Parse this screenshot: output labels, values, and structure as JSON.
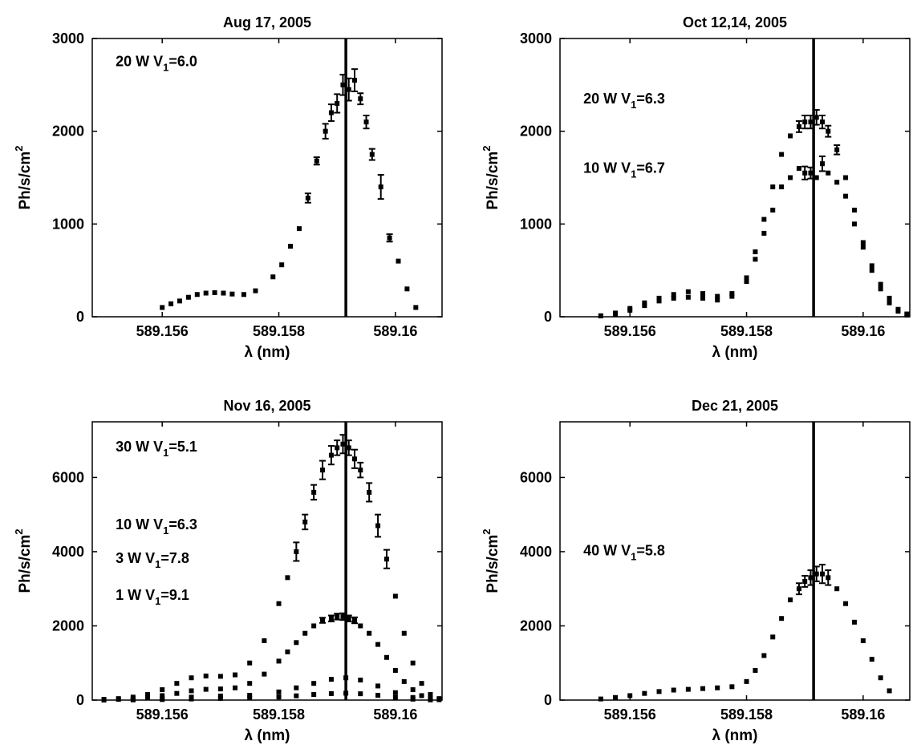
{
  "chart_data": [
    {
      "type": "scatter",
      "title": "Aug 17, 2005",
      "xlabel": "λ (nm)",
      "ylabel": "Ph/s/cm",
      "ylabel_sup": "2",
      "xlim": [
        589.1548,
        589.1608
      ],
      "ylim": [
        0,
        3000
      ],
      "xticks": [
        589.156,
        589.158,
        589.16
      ],
      "xtick_labels": [
        "589.156",
        "589.158",
        "589.16"
      ],
      "yticks": [
        0,
        1000,
        2000,
        3000
      ],
      "ytick_labels": [
        "0",
        "1000",
        "2000",
        "3000"
      ],
      "vline": 589.15915,
      "annotations": [
        {
          "pre": "20 W  V",
          "sub": "1",
          "post": "=6.0",
          "x": 589.1552,
          "y": 2700
        }
      ],
      "series": [
        {
          "x": [
            589.156,
            589.15615,
            589.1563,
            589.15645,
            589.1566,
            589.15675,
            589.1569,
            589.15705,
            589.1572,
            589.1574,
            589.1576,
            589.1579,
            589.15805,
            589.1582,
            589.15835,
            589.1585,
            589.15865,
            589.1588,
            589.1589,
            589.159,
            589.1591,
            589.1592,
            589.1593,
            589.1594,
            589.1595,
            589.1596,
            589.15975,
            589.1599,
            589.16005,
            589.1602,
            589.16035
          ],
          "y": [
            100,
            140,
            170,
            210,
            240,
            255,
            260,
            255,
            245,
            240,
            280,
            430,
            560,
            760,
            950,
            1280,
            1680,
            2000,
            2200,
            2300,
            2500,
            2450,
            2550,
            2350,
            2100,
            1750,
            1400,
            850,
            600,
            300,
            100
          ],
          "err": [
            0,
            0,
            0,
            0,
            0,
            0,
            0,
            0,
            0,
            0,
            0,
            0,
            0,
            0,
            0,
            50,
            40,
            80,
            90,
            100,
            110,
            120,
            120,
            60,
            70,
            60,
            130,
            40,
            0,
            0,
            0
          ]
        }
      ]
    },
    {
      "type": "scatter",
      "title": "Oct 12,14, 2005",
      "xlabel": "λ (nm)",
      "ylabel": "Ph/s/cm",
      "ylabel_sup": "2",
      "xlim": [
        589.1548,
        589.1608
      ],
      "ylim": [
        0,
        3000
      ],
      "xticks": [
        589.156,
        589.158,
        589.16
      ],
      "xtick_labels": [
        "589.156",
        "589.158",
        "589.16"
      ],
      "yticks": [
        0,
        1000,
        2000,
        3000
      ],
      "ytick_labels": [
        "0",
        "1000",
        "2000",
        "3000"
      ],
      "vline": 589.15915,
      "annotations": [
        {
          "pre": "20 W  V",
          "sub": "1",
          "post": "=6.3",
          "x": 589.1552,
          "y": 2300
        },
        {
          "pre": "10 W  V",
          "sub": "1",
          "post": "=6.7",
          "x": 589.1552,
          "y": 1550
        }
      ],
      "series": [
        {
          "x": [
            589.1555,
            589.15575,
            589.156,
            589.15625,
            589.1565,
            589.15675,
            589.157,
            589.15725,
            589.1575,
            589.15775,
            589.158,
            589.15815,
            589.1583,
            589.15845,
            589.1586,
            589.15875,
            589.1589,
            589.159,
            589.1591,
            589.1592,
            589.1593,
            589.1594,
            589.15955,
            589.1597,
            589.15985,
            589.16,
            589.16015,
            589.1603,
            589.16045,
            589.1606,
            589.16075
          ],
          "y": [
            10,
            40,
            90,
            150,
            200,
            240,
            270,
            250,
            220,
            250,
            420,
            700,
            1050,
            1400,
            1750,
            1950,
            2050,
            2100,
            2100,
            2150,
            2100,
            2000,
            1800,
            1500,
            1150,
            800,
            550,
            350,
            200,
            80,
            30
          ],
          "err": [
            0,
            0,
            0,
            0,
            0,
            0,
            0,
            0,
            0,
            0,
            0,
            0,
            0,
            0,
            0,
            0,
            60,
            70,
            70,
            80,
            70,
            60,
            50,
            0,
            0,
            0,
            0,
            0,
            0,
            0,
            0
          ]
        },
        {
          "x": [
            589.1555,
            589.15575,
            589.156,
            589.15625,
            589.1565,
            589.15675,
            589.157,
            589.15725,
            589.1575,
            589.15775,
            589.158,
            589.15815,
            589.1583,
            589.15845,
            589.1586,
            589.15875,
            589.1589,
            589.159,
            589.1591,
            589.1592,
            589.1593,
            589.1594,
            589.15955,
            589.1597,
            589.15985,
            589.16,
            589.16015,
            589.1603,
            589.16045,
            589.1606,
            589.16075
          ],
          "y": [
            10,
            30,
            70,
            120,
            170,
            200,
            210,
            200,
            180,
            220,
            380,
            620,
            900,
            1150,
            1400,
            1500,
            1600,
            1550,
            1550,
            1500,
            1650,
            1550,
            1450,
            1300,
            1000,
            750,
            500,
            300,
            150,
            60,
            20
          ],
          "err": [
            0,
            0,
            0,
            0,
            0,
            0,
            0,
            0,
            0,
            0,
            0,
            0,
            0,
            0,
            0,
            0,
            0,
            70,
            60,
            0,
            80,
            0,
            0,
            0,
            0,
            0,
            0,
            0,
            0,
            0,
            0
          ]
        }
      ]
    },
    {
      "type": "scatter",
      "title": "Nov 16, 2005",
      "xlabel": "λ (nm)",
      "ylabel": "Ph/s/cm",
      "ylabel_sup": "2",
      "xlim": [
        589.1548,
        589.1608
      ],
      "ylim": [
        0,
        7500
      ],
      "xticks": [
        589.156,
        589.158,
        589.16
      ],
      "xtick_labels": [
        "589.156",
        "589.158",
        "589.16"
      ],
      "yticks": [
        0,
        2000,
        4000,
        6000
      ],
      "ytick_labels": [
        "0",
        "2000",
        "4000",
        "6000"
      ],
      "vline": 589.15915,
      "annotations": [
        {
          "pre": "30 W  V",
          "sub": "1",
          "post": "=5.1",
          "x": 589.1552,
          "y": 6700
        },
        {
          "pre": "10 W  V",
          "sub": "1",
          "post": "=6.3",
          "x": 589.1552,
          "y": 4600
        },
        {
          "pre": "3 W  V",
          "sub": "1",
          "post": "=7.8",
          "x": 589.1552,
          "y": 3700
        },
        {
          "pre": "1 W  V",
          "sub": "1",
          "post": "=9.1",
          "x": 589.1552,
          "y": 2700
        }
      ],
      "series": [
        {
          "x": [
            589.155,
            589.15525,
            589.1555,
            589.15575,
            589.156,
            589.15625,
            589.1565,
            589.15675,
            589.157,
            589.15725,
            589.1575,
            589.15775,
            589.158,
            589.15815,
            589.1583,
            589.15845,
            589.1586,
            589.15875,
            589.1589,
            589.159,
            589.1591,
            589.1592,
            589.1593,
            589.1594,
            589.15955,
            589.1597,
            589.15985,
            589.16,
            589.16015,
            589.1603,
            589.16045,
            589.1606,
            589.16075
          ],
          "y": [
            20,
            40,
            80,
            150,
            280,
            450,
            600,
            650,
            640,
            680,
            1000,
            1600,
            2600,
            3300,
            4000,
            4800,
            5600,
            6200,
            6600,
            6800,
            6900,
            6800,
            6500,
            6200,
            5600,
            4700,
            3800,
            2800,
            1800,
            1000,
            450,
            150,
            40
          ],
          "err": [
            0,
            0,
            0,
            0,
            0,
            0,
            0,
            0,
            0,
            0,
            0,
            0,
            0,
            0,
            250,
            200,
            200,
            250,
            250,
            200,
            250,
            200,
            250,
            200,
            250,
            300,
            250,
            0,
            0,
            0,
            0,
            0,
            0
          ]
        },
        {
          "x": [
            589.155,
            589.15525,
            589.1555,
            589.15575,
            589.156,
            589.15625,
            589.1565,
            589.15675,
            589.157,
            589.15725,
            589.1575,
            589.15775,
            589.158,
            589.15815,
            589.1583,
            589.15845,
            589.1586,
            589.15875,
            589.1589,
            589.159,
            589.1591,
            589.1592,
            589.1593,
            589.1594,
            589.15955,
            589.1597,
            589.15985,
            589.16,
            589.16015,
            589.1603,
            589.16045,
            589.1606,
            589.16075
          ],
          "y": [
            10,
            20,
            40,
            70,
            120,
            180,
            250,
            290,
            300,
            330,
            450,
            700,
            1050,
            1300,
            1550,
            1800,
            2000,
            2150,
            2200,
            2250,
            2250,
            2200,
            2150,
            2000,
            1800,
            1500,
            1150,
            800,
            500,
            280,
            120,
            40,
            10
          ],
          "err": [
            0,
            0,
            0,
            0,
            0,
            0,
            0,
            0,
            0,
            0,
            0,
            0,
            0,
            0,
            0,
            0,
            0,
            70,
            80,
            80,
            90,
            80,
            80,
            0,
            0,
            0,
            0,
            0,
            0,
            0,
            0,
            0,
            0
          ]
        },
        {
          "x": [
            589.155,
            589.1555,
            589.156,
            589.1565,
            589.157,
            589.1575,
            589.158,
            589.1583,
            589.1586,
            589.1589,
            589.15915,
            589.1594,
            589.1597,
            589.16,
            589.1603,
            589.1606
          ],
          "y": [
            5,
            15,
            40,
            80,
            110,
            130,
            220,
            330,
            450,
            560,
            600,
            540,
            380,
            200,
            70,
            15
          ],
          "err": [
            0,
            0,
            0,
            0,
            0,
            0,
            0,
            0,
            0,
            0,
            0,
            0,
            0,
            0,
            0,
            0
          ]
        },
        {
          "x": [
            589.155,
            589.1555,
            589.156,
            589.1565,
            589.157,
            589.1575,
            589.158,
            589.1583,
            589.1586,
            589.1589,
            589.15915,
            589.1594,
            589.1597,
            589.16,
            589.1603,
            589.1606
          ],
          "y": [
            2,
            6,
            15,
            30,
            45,
            55,
            85,
            115,
            150,
            175,
            185,
            170,
            130,
            70,
            25,
            6
          ],
          "err": [
            0,
            0,
            0,
            0,
            0,
            0,
            0,
            0,
            0,
            0,
            0,
            0,
            0,
            0,
            0,
            0
          ]
        }
      ]
    },
    {
      "type": "scatter",
      "title": "Dec 21, 2005",
      "xlabel": "λ (nm)",
      "ylabel": "Ph/s/cm",
      "ylabel_sup": "2",
      "xlim": [
        589.1548,
        589.1608
      ],
      "ylim": [
        0,
        7500
      ],
      "xticks": [
        589.156,
        589.158,
        589.16
      ],
      "xtick_labels": [
        "589.156",
        "589.158",
        "589.16"
      ],
      "yticks": [
        0,
        2000,
        4000,
        6000
      ],
      "ytick_labels": [
        "0",
        "2000",
        "4000",
        "6000"
      ],
      "vline": 589.15915,
      "annotations": [
        {
          "pre": "40 W  V",
          "sub": "1",
          "post": "=5.8",
          "x": 589.1552,
          "y": 3900
        }
      ],
      "series": [
        {
          "x": [
            589.1555,
            589.15575,
            589.156,
            589.15625,
            589.1565,
            589.15675,
            589.157,
            589.15725,
            589.1575,
            589.15775,
            589.158,
            589.15815,
            589.1583,
            589.15845,
            589.1586,
            589.15875,
            589.1589,
            589.159,
            589.1591,
            589.1592,
            589.1593,
            589.1594,
            589.15955,
            589.1597,
            589.15985,
            589.16,
            589.16015,
            589.1603,
            589.16045
          ],
          "y": [
            30,
            70,
            120,
            180,
            230,
            270,
            290,
            310,
            330,
            360,
            500,
            800,
            1200,
            1700,
            2200,
            2700,
            3000,
            3200,
            3300,
            3400,
            3400,
            3300,
            3000,
            2600,
            2100,
            1600,
            1100,
            600,
            250
          ],
          "err": [
            0,
            0,
            0,
            0,
            0,
            0,
            0,
            0,
            0,
            0,
            0,
            0,
            0,
            0,
            0,
            0,
            150,
            150,
            200,
            200,
            250,
            200,
            0,
            0,
            0,
            0,
            0,
            0,
            0
          ]
        }
      ]
    }
  ]
}
